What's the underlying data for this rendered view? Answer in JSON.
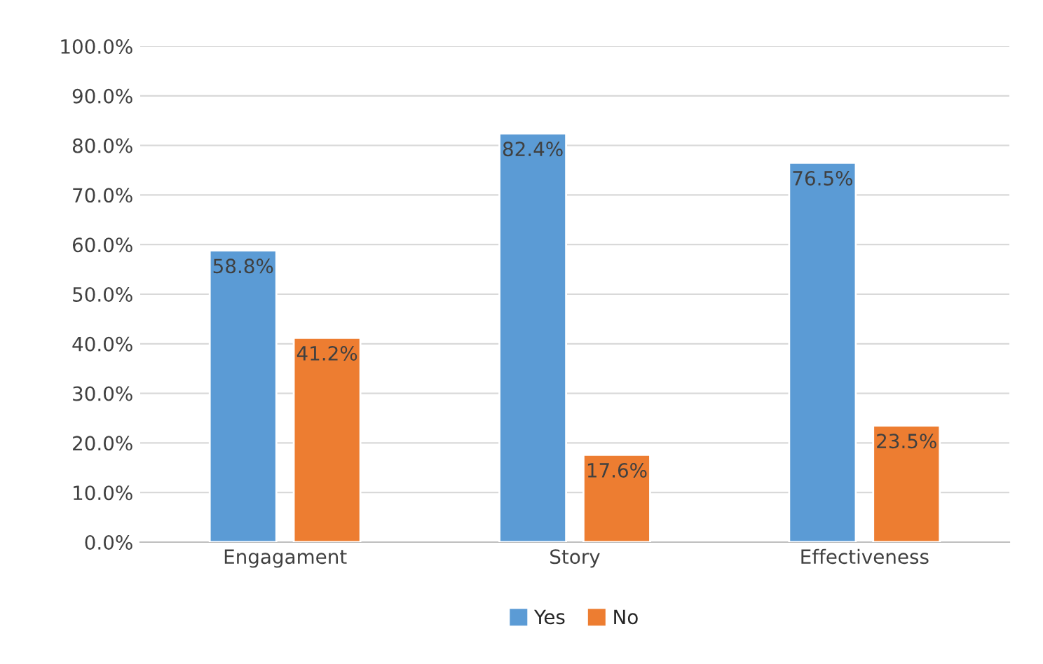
{
  "chart_data": {
    "type": "bar",
    "categories": [
      "Engagament",
      "Story",
      "Effectiveness"
    ],
    "series": [
      {
        "name": "Yes",
        "color": "#5b9bd5",
        "values": [
          58.8,
          82.4,
          76.5
        ],
        "value_labels": [
          "58.8%",
          "82.4%",
          "76.5%"
        ]
      },
      {
        "name": "No",
        "color": "#ed7d31",
        "values": [
          41.2,
          17.6,
          23.5
        ],
        "value_labels": [
          "41.2%",
          "17.6%",
          "23.5%"
        ]
      }
    ],
    "ylim": [
      0,
      100
    ],
    "yticks": [
      {
        "value": 0,
        "label": "0.0%"
      },
      {
        "value": 10,
        "label": "10.0%"
      },
      {
        "value": 20,
        "label": "20.0%"
      },
      {
        "value": 30,
        "label": "30.0%"
      },
      {
        "value": 40,
        "label": "40.0%"
      },
      {
        "value": 50,
        "label": "50.0%"
      },
      {
        "value": 60,
        "label": "60.0%"
      },
      {
        "value": 70,
        "label": "70.0%"
      },
      {
        "value": 80,
        "label": "80.0%"
      },
      {
        "value": 90,
        "label": "90.0%"
      },
      {
        "value": 100,
        "label": "100.0%"
      }
    ],
    "grid": "y",
    "legend": "bottom"
  }
}
